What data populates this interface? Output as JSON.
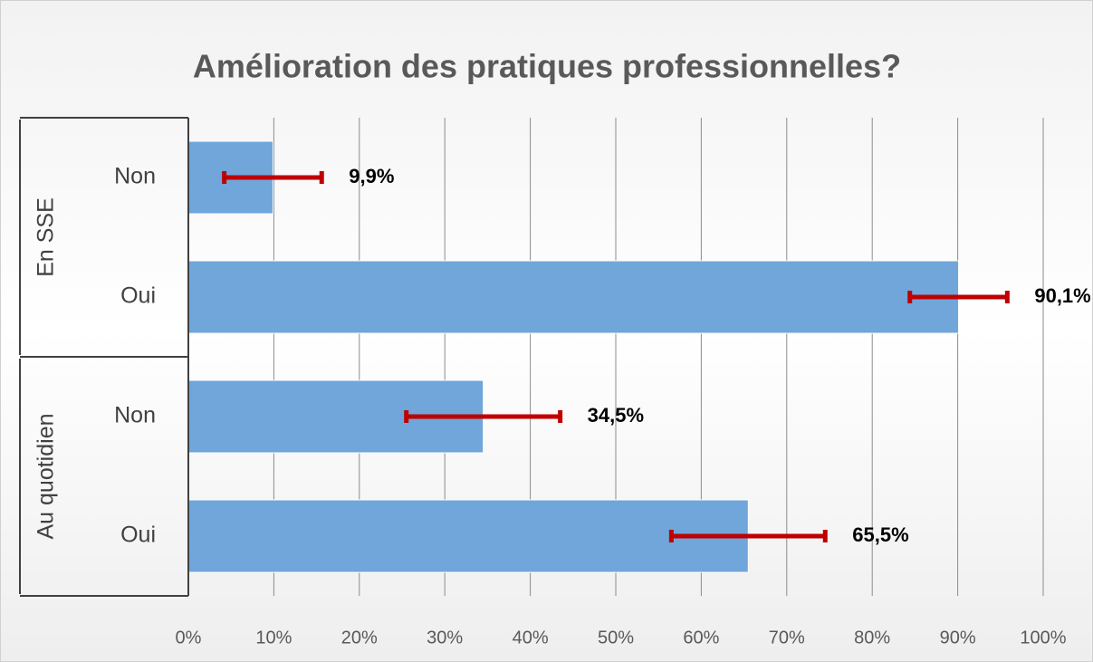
{
  "chart_data": {
    "type": "bar",
    "orientation": "horizontal",
    "title": "Amélioration des pratiques professionnelles?",
    "groups": [
      {
        "name": "En SSE",
        "categories": [
          "Non",
          "Oui"
        ],
        "values": [
          9.9,
          90.1
        ],
        "errors": [
          5.7,
          5.7
        ],
        "value_labels": [
          "9,9%",
          "90,1%"
        ]
      },
      {
        "name": "Au quotidien",
        "categories": [
          "Non",
          "Oui"
        ],
        "values": [
          34.5,
          65.5
        ],
        "errors": [
          9,
          9
        ],
        "value_labels": [
          "34,5%",
          "65,5%"
        ]
      }
    ],
    "color": "#70a6da",
    "error_color": "#c00000",
    "xlim": [
      0,
      100
    ],
    "xticks": [
      {
        "value": 0,
        "label": "0%"
      },
      {
        "value": 10,
        "label": "10%"
      },
      {
        "value": 20,
        "label": "20%"
      },
      {
        "value": 30,
        "label": "30%"
      },
      {
        "value": 40,
        "label": "40%"
      },
      {
        "value": 50,
        "label": "50%"
      },
      {
        "value": 60,
        "label": "60%"
      },
      {
        "value": 70,
        "label": "70%"
      },
      {
        "value": 80,
        "label": "80%"
      },
      {
        "value": 90,
        "label": "90%"
      },
      {
        "value": 100,
        "label": "100%"
      }
    ],
    "grid": true
  }
}
